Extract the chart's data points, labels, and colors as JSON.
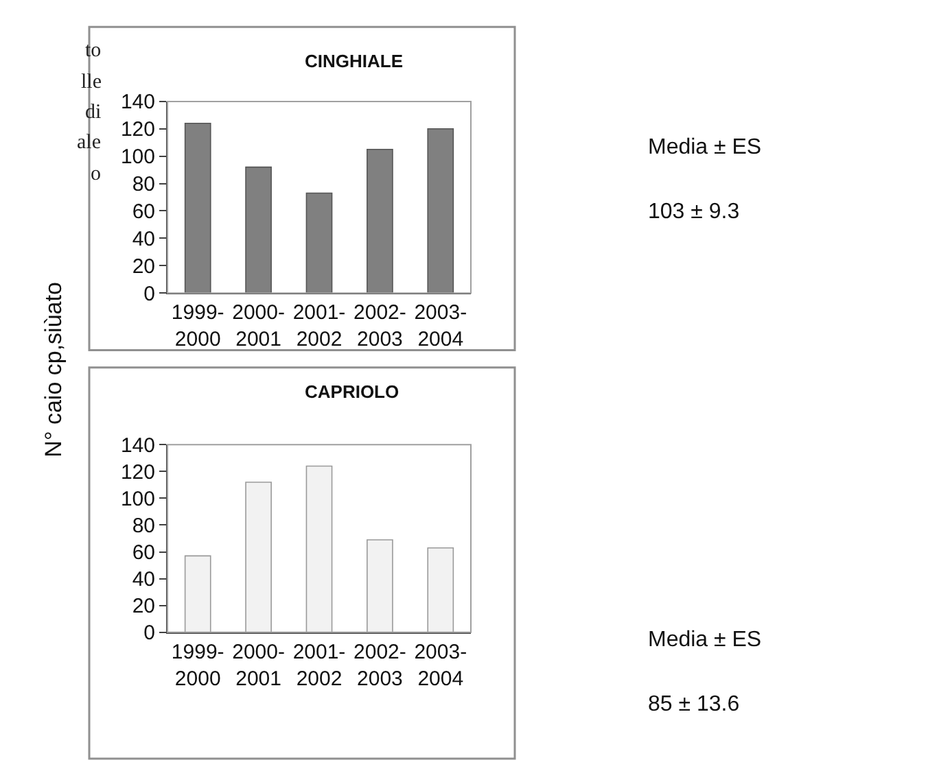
{
  "chart_data": [
    {
      "type": "bar",
      "title": "CINGHIALE",
      "ylabel": "N° caio cp,siùato",
      "categories": [
        "1999-2000",
        "2000-2001",
        "2001-2002",
        "2002-2003",
        "2003-2004"
      ],
      "values": [
        124,
        92,
        73,
        105,
        120
      ],
      "color": "#808080",
      "ylim": [
        0,
        140
      ],
      "yticks": [
        0,
        20,
        40,
        60,
        80,
        100,
        120,
        140
      ],
      "annotations": [
        "to",
        "lle",
        "di",
        "ale",
        "o",
        "Media ± ES",
        "103 ± 9.3"
      ]
    },
    {
      "type": "bar",
      "title": "CAPRIOLO",
      "categories": [
        "1999-2000",
        "2000-2001",
        "2001-2002",
        "2002-2003",
        "2003-2004"
      ],
      "values": [
        57,
        112,
        124,
        69,
        63
      ],
      "color": "#f2f2f2",
      "ylim": [
        0,
        140
      ],
      "yticks": [
        0,
        20,
        40,
        60,
        80,
        100,
        120,
        140
      ],
      "annotations": [
        "Media ± ES",
        "85 ± 13.6"
      ]
    }
  ]
}
